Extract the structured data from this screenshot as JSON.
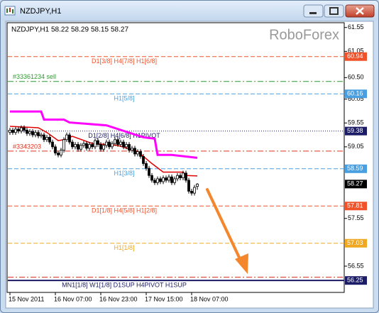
{
  "window_title": "NZDJPY,H1",
  "chart_data": {
    "type": "candlestick",
    "title": "NZDJPY,H1",
    "watermark": "RoboForex",
    "categories": [
      "15 Nov 2011",
      null,
      null,
      null,
      null,
      null,
      null,
      null,
      null,
      null,
      null,
      null,
      null,
      null,
      null,
      null,
      "16 Nov 07:00",
      null,
      null,
      null,
      null,
      null,
      null,
      null,
      null,
      null,
      null,
      null,
      null,
      null,
      null,
      null,
      "16 Nov 23:00",
      null,
      null,
      null,
      null,
      null,
      null,
      null,
      null,
      null,
      null,
      null,
      null,
      null,
      null,
      null,
      "17 Nov 15:00",
      null,
      null,
      null,
      null,
      null,
      null,
      null,
      null,
      null,
      null,
      null,
      null,
      null,
      null,
      null,
      "18 Nov 07:00",
      null,
      null
    ],
    "open": [
      59.35,
      59.4,
      59.35,
      59.42,
      59.38,
      59.45,
      59.4,
      59.33,
      59.37,
      59.3,
      59.35,
      59.28,
      59.3,
      59.2,
      59.25,
      59.15,
      59.05,
      58.92,
      58.88,
      58.98,
      59.2,
      59.3,
      59.15,
      59.05,
      59.1,
      59.0,
      59.08,
      59.12,
      59.02,
      59.1,
      59.05,
      59.18,
      59.1,
      59.0,
      59.08,
      59.15,
      59.05,
      59.12,
      59.2,
      59.1,
      59.15,
      59.05,
      59.1,
      58.98,
      59.02,
      58.9,
      58.95,
      58.85,
      58.7,
      58.6,
      58.45,
      58.35,
      58.3,
      58.38,
      58.32,
      58.4,
      58.35,
      58.42,
      58.3,
      58.38,
      58.45,
      58.4,
      58.5,
      58.35,
      58.12,
      58.08,
      58.22
    ],
    "high": [
      59.45,
      59.45,
      59.47,
      59.47,
      59.5,
      59.5,
      59.45,
      59.42,
      59.42,
      59.4,
      59.4,
      59.35,
      59.35,
      59.3,
      59.3,
      59.2,
      59.1,
      58.97,
      59.03,
      59.25,
      59.35,
      59.35,
      59.2,
      59.15,
      59.15,
      59.13,
      59.17,
      59.17,
      59.15,
      59.15,
      59.23,
      59.23,
      59.15,
      59.13,
      59.2,
      59.2,
      59.17,
      59.25,
      59.25,
      59.2,
      59.2,
      59.15,
      59.15,
      59.07,
      59.07,
      59.0,
      59.0,
      58.9,
      58.75,
      58.65,
      58.5,
      58.4,
      58.43,
      58.43,
      58.45,
      58.45,
      58.47,
      58.47,
      58.43,
      58.5,
      58.5,
      58.55,
      58.55,
      58.4,
      58.17,
      58.25,
      58.29
    ],
    "low": [
      59.3,
      59.3,
      59.3,
      59.33,
      59.33,
      59.35,
      59.28,
      59.28,
      59.25,
      59.25,
      59.23,
      59.23,
      59.15,
      59.15,
      59.1,
      59.0,
      58.87,
      58.83,
      58.83,
      58.93,
      59.15,
      59.1,
      59.0,
      59.0,
      58.95,
      58.95,
      59.03,
      58.97,
      58.97,
      59.0,
      59.0,
      59.05,
      58.95,
      58.95,
      59.03,
      59.0,
      59.0,
      59.07,
      59.05,
      59.05,
      59.0,
      59.0,
      58.93,
      58.93,
      58.85,
      58.85,
      58.8,
      58.65,
      58.55,
      58.4,
      58.3,
      58.25,
      58.25,
      58.27,
      58.27,
      58.3,
      58.3,
      58.25,
      58.25,
      58.33,
      58.35,
      58.35,
      58.3,
      58.07,
      58.03,
      58.03,
      58.15
    ],
    "close": [
      59.4,
      59.35,
      59.42,
      59.38,
      59.45,
      59.4,
      59.33,
      59.37,
      59.3,
      59.35,
      59.28,
      59.3,
      59.2,
      59.25,
      59.15,
      59.05,
      58.92,
      58.88,
      58.98,
      59.2,
      59.3,
      59.15,
      59.05,
      59.1,
      59.0,
      59.08,
      59.12,
      59.02,
      59.1,
      59.05,
      59.18,
      59.1,
      59.0,
      59.08,
      59.15,
      59.05,
      59.12,
      59.2,
      59.1,
      59.15,
      59.05,
      59.1,
      58.98,
      59.02,
      58.9,
      58.95,
      58.85,
      58.7,
      58.6,
      58.45,
      58.35,
      58.3,
      58.38,
      58.32,
      58.4,
      58.35,
      58.42,
      58.3,
      58.38,
      58.45,
      58.4,
      58.5,
      58.35,
      58.12,
      58.08,
      58.2,
      58.27
    ],
    "candle_color": "#000000",
    "lines": [
      {
        "color": "#ff00ff",
        "x": [
          0,
          11,
          12,
          19,
          21,
          34,
          47,
          51,
          52,
          57,
          66
        ],
        "values": [
          59.79,
          59.79,
          59.62,
          59.62,
          59.56,
          59.5,
          59.25,
          59.22,
          58.88,
          58.88,
          58.82
        ]
      },
      {
        "color": "#e00000",
        "x": [
          0,
          10,
          13,
          17,
          19,
          22,
          29,
          38,
          45,
          50,
          54,
          61,
          62,
          66
        ],
        "values": [
          59.48,
          59.45,
          59.35,
          59.18,
          59.2,
          59.27,
          59.12,
          59.08,
          58.95,
          58.7,
          58.52,
          58.52,
          58.45,
          58.44
        ]
      }
    ],
    "levels": [
      {
        "value": 60.94,
        "color": "#f0522a",
        "style": "dash",
        "label": "D1[3/8] H4[7/8] H1[6/8]",
        "tag": true
      },
      {
        "value": 60.42,
        "color": "#2e9a2e",
        "style": "dashdot",
        "label": "#33361234 sell",
        "tag": false
      },
      {
        "value": 60.16,
        "color": "#4a9fe0",
        "style": "dash",
        "label": "H1[5/8]",
        "tag": true
      },
      {
        "value": 59.38,
        "color": "#1c1c66",
        "style": "dot",
        "label": "D1[2/8] H4[6/8] H1PIVOT",
        "tag": true
      },
      {
        "value": 58.96,
        "color": "#e03020",
        "style": "dashdot",
        "label": "#3343203",
        "tag": false
      },
      {
        "value": 58.59,
        "color": "#4a9fe0",
        "style": "dash",
        "label": "H1[3/8]",
        "tag": true
      },
      {
        "value": 57.81,
        "color": "#f0522a",
        "style": "dash",
        "label": "D1[1/8] H4[5/8] H1[2/8]",
        "tag": true
      },
      {
        "value": 57.03,
        "color": "#f0a820",
        "style": "dash",
        "label": "H1[1/8]",
        "tag": true
      },
      {
        "value": 56.32,
        "color": "#e03020",
        "style": "dashdot",
        "tag": false
      },
      {
        "value": 56.25,
        "color": "#1c1c66",
        "style": "solid",
        "label": "MN1[1/8] W1[1/8] D1SUP H4PIVOT H1SUP",
        "tag": true
      }
    ],
    "ylim": [
      56.0,
      61.65
    ],
    "yticks": [
      61.55,
      61.05,
      {
        "value": 60.5,
        "label": "60.50"
      },
      60.05,
      59.55,
      59.05,
      57.55,
      56.55
    ],
    "price_tag_color": "#000000"
  }
}
